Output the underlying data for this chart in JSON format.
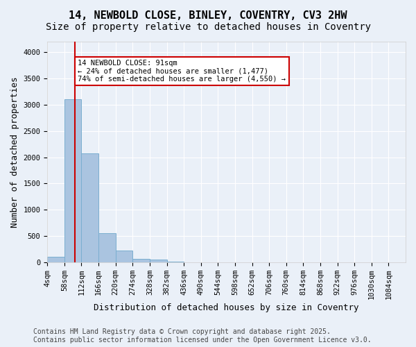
{
  "title_line1": "14, NEWBOLD CLOSE, BINLEY, COVENTRY, CV3 2HW",
  "title_line2": "Size of property relative to detached houses in Coventry",
  "xlabel": "Distribution of detached houses by size in Coventry",
  "ylabel": "Number of detached properties",
  "bar_color": "#aac4e0",
  "bar_edge_color": "#7aaed0",
  "background_color": "#eaf0f8",
  "grid_color": "#ffffff",
  "property_line_x": 91,
  "property_line_color": "#cc0000",
  "annotation_text": "14 NEWBOLD CLOSE: 91sqm\n← 24% of detached houses are smaller (1,477)\n74% of semi-detached houses are larger (4,550) →",
  "annotation_box_color": "#ffffff",
  "annotation_box_edge": "#cc0000",
  "bins_start": [
    4,
    58,
    112,
    166,
    220,
    274,
    328,
    382,
    436,
    490,
    544,
    598,
    652,
    706,
    760,
    814,
    868,
    922,
    976,
    1030,
    1084
  ],
  "bin_width": 54,
  "bin_labels": [
    "4sqm",
    "58sqm",
    "112sqm",
    "166sqm",
    "220sqm",
    "274sqm",
    "328sqm",
    "382sqm",
    "436sqm",
    "490sqm",
    "544sqm",
    "598sqm",
    "652sqm",
    "706sqm",
    "760sqm",
    "814sqm",
    "868sqm",
    "922sqm",
    "976sqm",
    "1030sqm",
    "1084sqm"
  ],
  "bar_heights": [
    100,
    3100,
    2080,
    560,
    220,
    70,
    50,
    10,
    0,
    0,
    0,
    0,
    0,
    0,
    0,
    0,
    0,
    0,
    0,
    0,
    0
  ],
  "ylim": [
    0,
    4200
  ],
  "yticks": [
    0,
    500,
    1000,
    1500,
    2000,
    2500,
    3000,
    3500,
    4000
  ],
  "footer_text": "Contains HM Land Registry data © Crown copyright and database right 2025.\nContains public sector information licensed under the Open Government Licence v3.0.",
  "title_fontsize": 11,
  "subtitle_fontsize": 10,
  "axis_label_fontsize": 9,
  "tick_fontsize": 7.5,
  "footer_fontsize": 7
}
